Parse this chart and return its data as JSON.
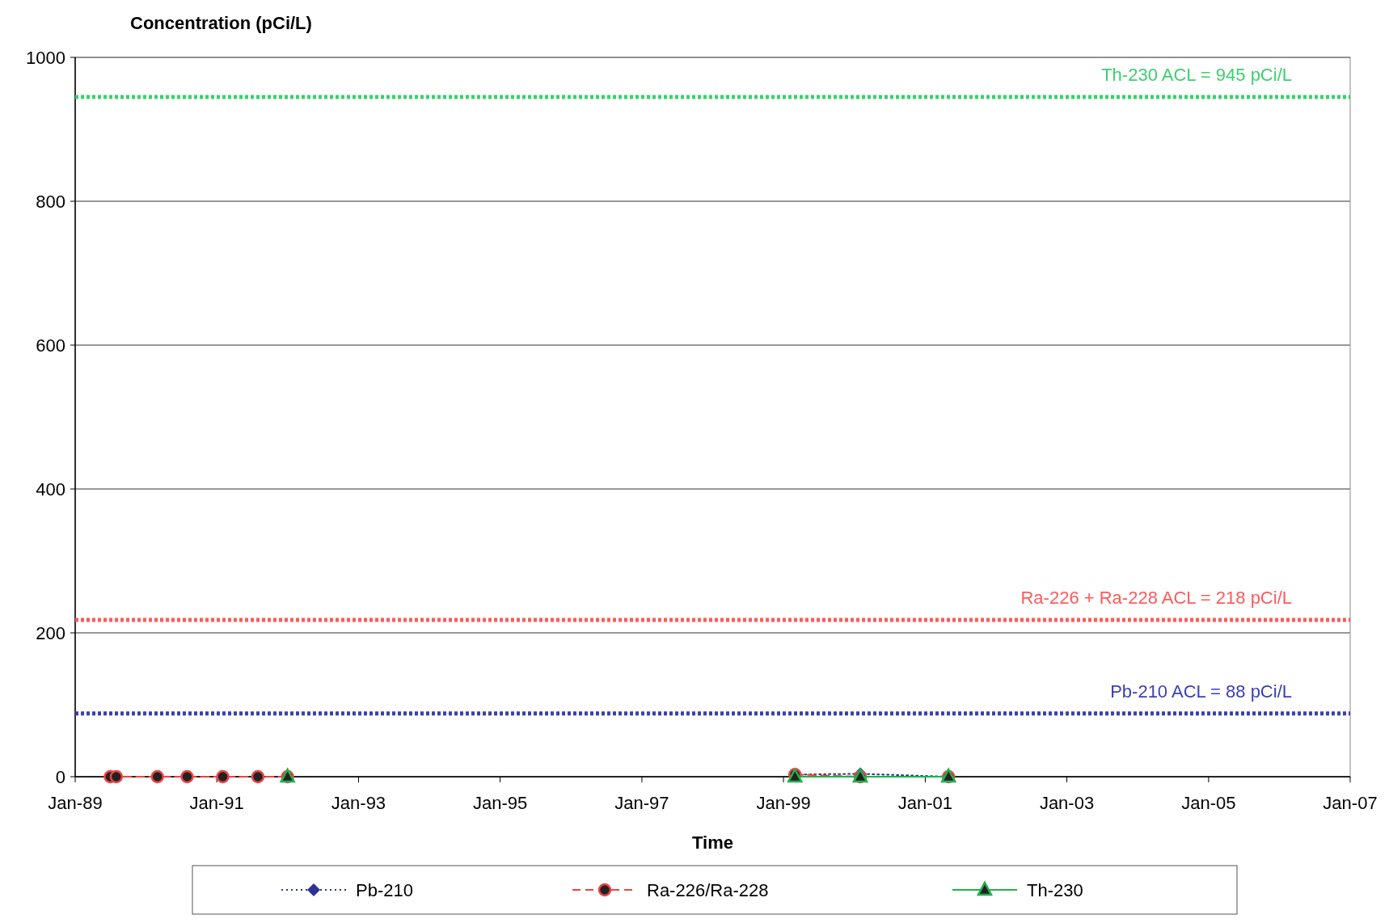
{
  "chart_data": {
    "type": "line",
    "ylabel": "Concentration (pCi/L)",
    "xlabel": "Time",
    "x": [
      "1989-07",
      "1989-08",
      "1990-03",
      "1990-08",
      "1991-02",
      "1991-08",
      "1992-01",
      "1995-06",
      "1999-03",
      "2000-02",
      "2001-05"
    ],
    "series": [
      {
        "name": "Pb-210",
        "color": "#2e3192",
        "marker": "diamond",
        "line_style": "dotted",
        "values": [
          null,
          null,
          null,
          null,
          null,
          null,
          null,
          null,
          3,
          4,
          0
        ]
      },
      {
        "name": "Ra-226/Ra-228",
        "color": "#ee4444",
        "marker": "circle",
        "line_style": "dashed",
        "values": [
          0,
          0,
          0,
          0,
          0,
          0,
          0,
          null,
          3,
          0,
          0
        ]
      },
      {
        "name": "Th-230",
        "color": "#22b14c",
        "marker": "triangle",
        "line_style": "solid",
        "values": [
          null,
          null,
          null,
          null,
          null,
          null,
          0,
          null,
          0,
          0,
          0
        ]
      }
    ],
    "xlim": [
      "1989-01",
      "2007-01"
    ],
    "xticks": [
      {
        "value": "1989-01",
        "label": "Jan-89"
      },
      {
        "value": "1991-01",
        "label": "Jan-91"
      },
      {
        "value": "1993-01",
        "label": "Jan-93"
      },
      {
        "value": "1995-01",
        "label": "Jan-95"
      },
      {
        "value": "1997-01",
        "label": "Jan-97"
      },
      {
        "value": "1999-01",
        "label": "Jan-99"
      },
      {
        "value": "2001-01",
        "label": "Jan-01"
      },
      {
        "value": "2003-01",
        "label": "Jan-03"
      },
      {
        "value": "2005-01",
        "label": "Jan-05"
      },
      {
        "value": "2007-01",
        "label": "Jan-07"
      }
    ],
    "ylim": [
      0,
      1000
    ],
    "yticks": [
      0,
      200,
      400,
      600,
      800,
      1000
    ],
    "grid": "y",
    "legend": "bottom",
    "ref_lines": [
      {
        "axis": "y",
        "value": 945,
        "label": "Th-230  ACL = 945 pCi/L",
        "color": "#3ccf6e",
        "line_style": "dotted"
      },
      {
        "axis": "y",
        "value": 218,
        "label": "Ra-226 + Ra-228 ACL = 218 pCi/L",
        "color": "#ff5a5a",
        "line_style": "dotted"
      },
      {
        "axis": "y",
        "value": 88,
        "label": "Pb-210 ACL = 88 pCi/L",
        "color": "#3a3fb0",
        "line_style": "dotted"
      }
    ]
  }
}
